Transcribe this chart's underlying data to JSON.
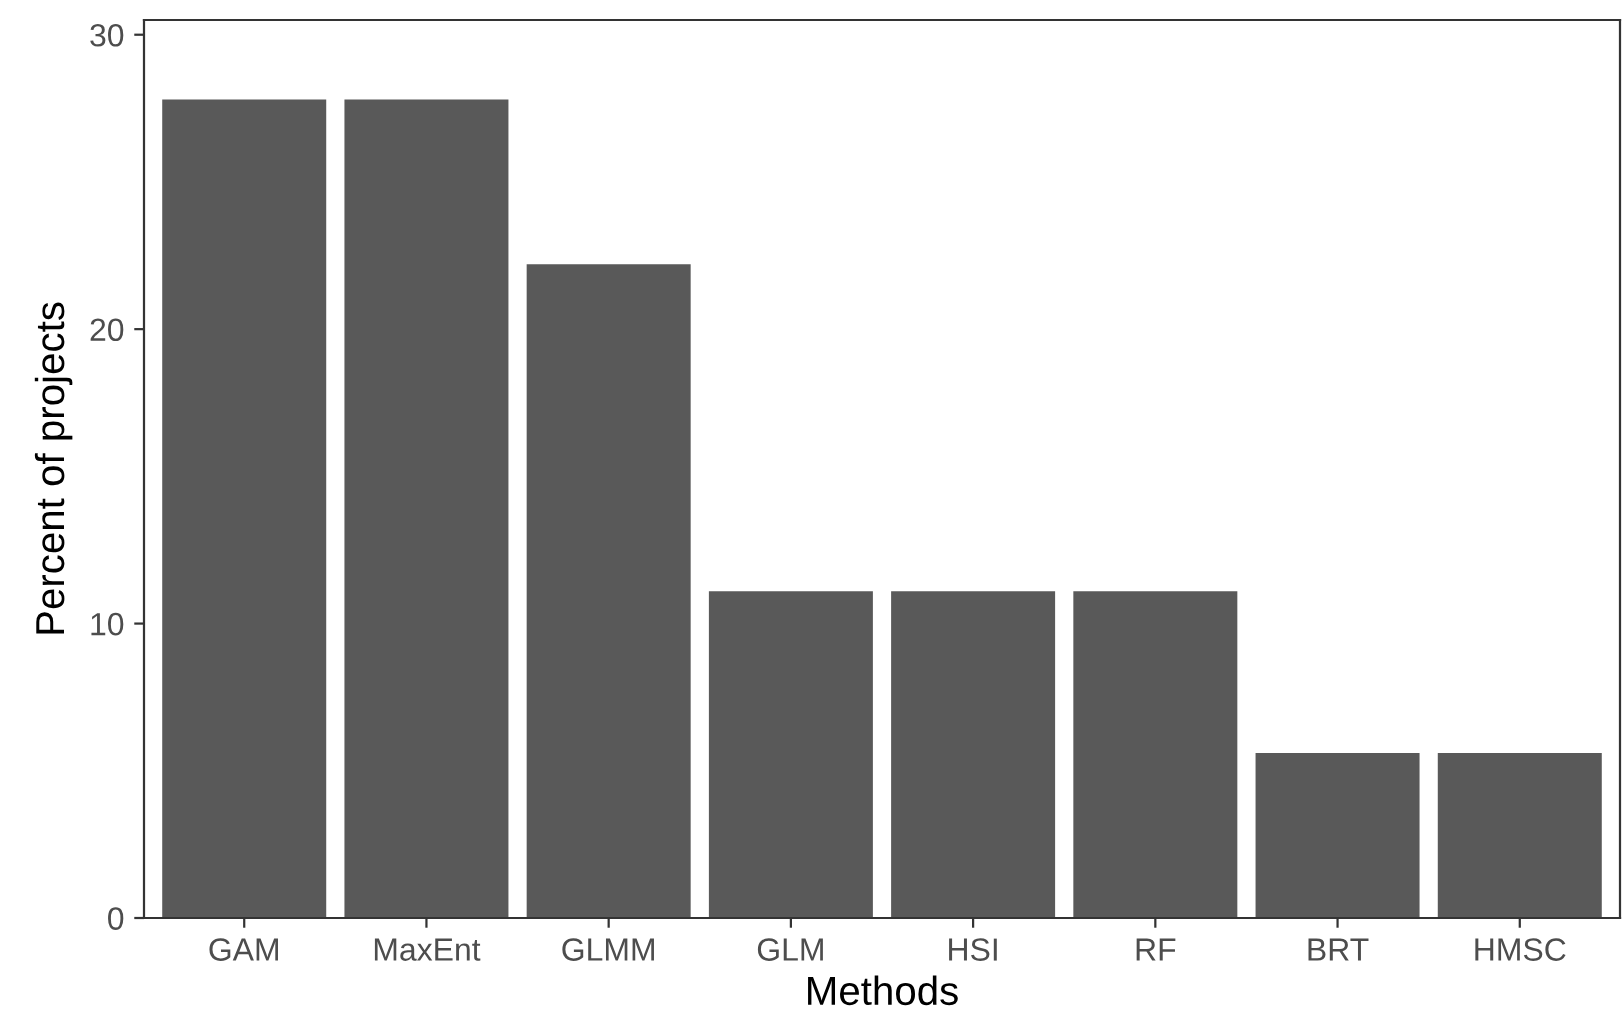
{
  "chart_data": {
    "type": "bar",
    "xlabel": "Methods",
    "ylabel": "Percent of projects",
    "categories": [
      "GAM",
      "MaxEnt",
      "GLMM",
      "GLM",
      "HSI",
      "RF",
      "BRT",
      "HMSC"
    ],
    "values": [
      27.8,
      27.8,
      22.2,
      11.1,
      11.1,
      11.1,
      5.6,
      5.6
    ],
    "color": "#595959",
    "ylim": [
      0,
      30.5
    ],
    "yticks": [
      0,
      10,
      20,
      30
    ],
    "grid": false,
    "legend": false
  }
}
